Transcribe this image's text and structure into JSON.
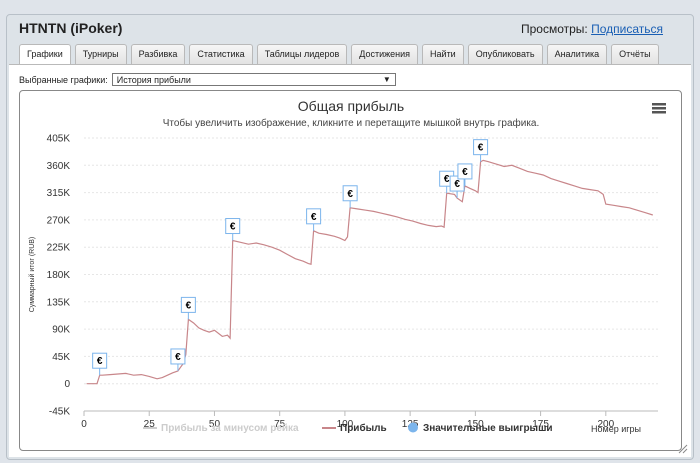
{
  "app": {
    "title": "HTNTN (iPoker)",
    "views_label": "Просмотры:",
    "subscribe_link": "Подписаться"
  },
  "tabs": [
    {
      "label": "Графики",
      "active": true
    },
    {
      "label": "Турниры"
    },
    {
      "label": "Разбивка"
    },
    {
      "label": "Статистика"
    },
    {
      "label": "Таблицы лидеров"
    },
    {
      "label": "Достижения"
    },
    {
      "label": "Найти"
    },
    {
      "label": "Опубликовать"
    },
    {
      "label": "Аналитика"
    },
    {
      "label": "Отчёты"
    }
  ],
  "selector": {
    "label": "Выбранные графики:",
    "value": "История прибыли"
  },
  "colors": {
    "profit_line": "#c8868a",
    "rake_line": "#cccccc",
    "marker": "#7cb5ec",
    "menu_icon": "#555555"
  },
  "chart_data": {
    "type": "line",
    "title": "Общая прибыль",
    "subtitle": "Чтобы увеличить изображение, кликните и перетащите мышкой внутрь графика.",
    "xlabel": "Номер игры",
    "ylabel": "Суммарный итог (RUB)",
    "xlim": [
      0,
      220
    ],
    "ylim": [
      -45000,
      405000
    ],
    "x_ticks": [
      0,
      25,
      50,
      75,
      100,
      125,
      150,
      175,
      200
    ],
    "y_ticks": [
      -45000,
      0,
      45000,
      90000,
      135000,
      180000,
      225000,
      270000,
      315000,
      360000,
      405000
    ],
    "y_tick_labels": [
      "-45K",
      "0",
      "45K",
      "90K",
      "135K",
      "180K",
      "225K",
      "270K",
      "315K",
      "360K",
      "405K"
    ],
    "grid": true,
    "legend_position": "bottom",
    "series": [
      {
        "name": "Прибыль за минусом рейка",
        "hidden": true,
        "values": []
      },
      {
        "name": "Прибыль",
        "x": [
          1,
          5,
          6,
          7,
          10,
          13,
          16,
          19,
          22,
          25,
          28,
          30,
          32,
          34,
          36,
          37,
          38,
          39,
          40,
          42,
          44,
          46,
          48,
          50,
          53,
          55,
          56,
          57,
          60,
          63,
          66,
          69,
          72,
          75,
          78,
          81,
          84,
          86,
          87,
          88,
          90,
          93,
          96,
          98,
          100,
          101,
          102,
          105,
          108,
          111,
          114,
          117,
          120,
          123,
          126,
          129,
          132,
          135,
          137,
          138,
          139,
          142,
          143,
          145,
          146,
          148,
          150,
          151,
          152,
          153,
          155,
          158,
          161,
          164,
          167,
          170,
          173,
          176,
          179,
          182,
          185,
          188,
          191,
          194,
          197,
          199,
          200,
          203,
          206,
          209,
          212,
          215,
          218
        ],
        "values": [
          0,
          0,
          14000,
          14000,
          15000,
          16000,
          17000,
          14000,
          15000,
          12000,
          8000,
          10000,
          14000,
          18000,
          21000,
          27000,
          33000,
          48000,
          106000,
          100000,
          92000,
          88000,
          85000,
          88000,
          78000,
          80000,
          75000,
          236000,
          233000,
          230000,
          232000,
          229000,
          225000,
          220000,
          213000,
          206000,
          202000,
          198000,
          197000,
          252000,
          248000,
          246000,
          243000,
          240000,
          236000,
          242000,
          290000,
          288000,
          286000,
          284000,
          281000,
          278000,
          275000,
          271000,
          268000,
          264000,
          261000,
          259000,
          260000,
          258000,
          314000,
          312000,
          306000,
          300000,
          326000,
          322000,
          318000,
          315000,
          366000,
          368000,
          366000,
          362000,
          358000,
          360000,
          355000,
          350000,
          347000,
          344000,
          338000,
          334000,
          330000,
          326000,
          322000,
          320000,
          318000,
          312000,
          296000,
          294000,
          292000,
          290000,
          286000,
          282000,
          278000
        ]
      }
    ],
    "markers": [
      {
        "name": "Значительные выигрыши",
        "x": 6,
        "y": 14000,
        "symbol": "€"
      },
      {
        "name": "Значительные выигрыши",
        "x": 36,
        "y": 21000,
        "symbol": "€"
      },
      {
        "name": "Значительные выигрыши",
        "x": 40,
        "y": 106000,
        "symbol": "€"
      },
      {
        "name": "Значительные выигрыши",
        "x": 57,
        "y": 236000,
        "symbol": "€"
      },
      {
        "name": "Значительные выигрыши",
        "x": 88,
        "y": 252000,
        "symbol": "€"
      },
      {
        "name": "Значительные выигрыши",
        "x": 102,
        "y": 290000,
        "symbol": "€"
      },
      {
        "name": "Значительные выигрыши",
        "x": 139,
        "y": 314000,
        "symbol": "€"
      },
      {
        "name": "Значительные выигрыши",
        "x": 143,
        "y": 306000,
        "symbol": "€"
      },
      {
        "name": "Значительные выигрыши",
        "x": 146,
        "y": 326000,
        "symbol": "€"
      },
      {
        "name": "Значительные выигрыши",
        "x": 152,
        "y": 366000,
        "symbol": "€"
      }
    ],
    "legend": [
      {
        "label": "Прибыль за минусом рейка",
        "kind": "line",
        "hidden": true
      },
      {
        "label": "Прибыль",
        "kind": "line"
      },
      {
        "label": "Значительные выигрыши",
        "kind": "marker"
      }
    ]
  }
}
